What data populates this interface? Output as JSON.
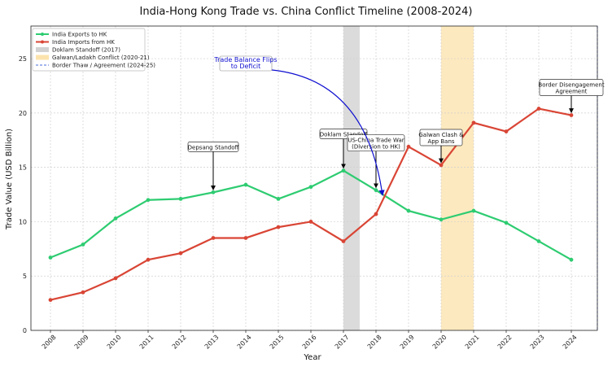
{
  "chart_data": {
    "type": "line",
    "title": "India-Hong Kong Trade vs. China Conflict Timeline (2008-2024)",
    "xlabel": "Year",
    "ylabel": "Trade Value (USD Billion)",
    "x": [
      2008,
      2009,
      2010,
      2011,
      2012,
      2013,
      2014,
      2015,
      2016,
      2017,
      2018,
      2019,
      2020,
      2021,
      2022,
      2023,
      2024
    ],
    "xlim": [
      2007.4,
      2024.8
    ],
    "ylim": [
      0,
      28
    ],
    "yticks": [
      0,
      5,
      10,
      15,
      20,
      25
    ],
    "grid": true,
    "legend_position": "top-left",
    "series": [
      {
        "name": "India Exports to HK",
        "color": "#2ecc71",
        "values": [
          6.7,
          7.9,
          10.3,
          12.0,
          12.1,
          12.7,
          13.4,
          12.1,
          13.2,
          14.7,
          12.9,
          11.0,
          10.2,
          11.0,
          9.9,
          8.2,
          6.5
        ]
      },
      {
        "name": "India Imports from HK",
        "color": "#d94535",
        "values": [
          2.8,
          3.5,
          4.8,
          6.5,
          7.1,
          8.5,
          8.5,
          9.5,
          10.0,
          8.2,
          10.7,
          16.9,
          15.2,
          19.1,
          18.3,
          20.4,
          19.8
        ]
      }
    ],
    "shaded_periods": [
      {
        "name": "Doklam Standoff (2017)",
        "start": 2017.0,
        "end": 2017.5,
        "color": "#bdbdbd"
      },
      {
        "name": "Galwan/Ladakh Conflict (2020-21)",
        "start": 2020.0,
        "end": 2021.0,
        "color": "#fbd78a"
      }
    ],
    "vertical_lines": [
      {
        "name": "Border Thaw / Agreement (2024-25)",
        "x": 2024.8,
        "color": "#4a6fd8"
      }
    ],
    "annotations": [
      {
        "text": [
          "Depsang Standoff"
        ],
        "x": 2013,
        "y": 12.7
      },
      {
        "text": [
          "Doklam Standoff"
        ],
        "x": 2017,
        "y": 14.7
      },
      {
        "text": [
          "US-China Trade War",
          "(Diversion to HK)"
        ],
        "x": 2018,
        "y": 12.9
      },
      {
        "text": [
          "Galwan Clash &",
          "App Bans"
        ],
        "x": 2020,
        "y": 15.2
      },
      {
        "text": [
          "Border Disengagement",
          "Agreement"
        ],
        "x": 2024,
        "y": 19.8
      }
    ],
    "highlight_annotation": {
      "text": [
        "Trade Balance Flips",
        "to Deficit"
      ],
      "target_x": 2018.2,
      "target_y": 12.2,
      "color": "#1010d0"
    }
  }
}
